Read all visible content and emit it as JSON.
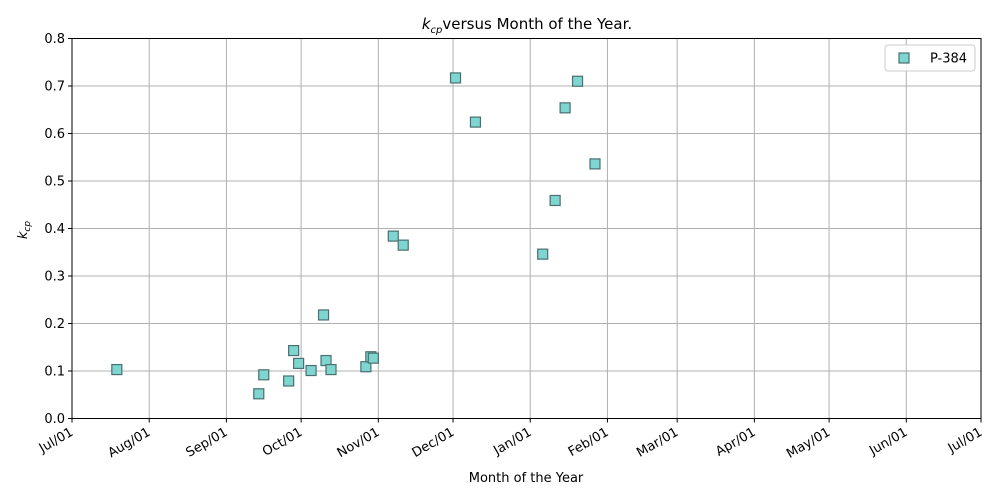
{
  "chart_data": {
    "type": "scatter",
    "title": "versus Month of the Year.",
    "title_symbol": "k",
    "title_symbol_sub": "cp",
    "xlabel": "Month of the Year",
    "ylabel_symbol": "k",
    "ylabel_sub": "cp",
    "x_ticks": [
      "Jul/01",
      "Aug/01",
      "Sep/01",
      "Oct/01",
      "Nov/01",
      "Dec/01",
      "Jan/01",
      "Feb/01",
      "Mar/01",
      "Apr/01",
      "May/01",
      "Jun/01",
      "Jul/01"
    ],
    "x_tick_days": [
      0,
      31,
      62,
      92,
      123,
      153,
      184,
      215,
      243,
      274,
      304,
      335,
      365
    ],
    "xlim_days": [
      0,
      365
    ],
    "y_ticks": [
      "0.0",
      "0.1",
      "0.2",
      "0.3",
      "0.4",
      "0.5",
      "0.6",
      "0.7",
      "0.8"
    ],
    "ylim": [
      0,
      0.8
    ],
    "grid": true,
    "legend_position": "top-right",
    "series": [
      {
        "name": "P-384",
        "marker": "square",
        "color": "#7fd6d0",
        "edge_color": "#4a6e72",
        "points": [
          {
            "day": 18,
            "y": 0.103
          },
          {
            "day": 75,
            "y": 0.052
          },
          {
            "day": 77,
            "y": 0.092
          },
          {
            "day": 87,
            "y": 0.079
          },
          {
            "day": 89,
            "y": 0.143
          },
          {
            "day": 91,
            "y": 0.116
          },
          {
            "day": 96,
            "y": 0.101
          },
          {
            "day": 101,
            "y": 0.218
          },
          {
            "day": 102,
            "y": 0.122
          },
          {
            "day": 104,
            "y": 0.103
          },
          {
            "day": 118,
            "y": 0.109
          },
          {
            "day": 120,
            "y": 0.13
          },
          {
            "day": 121,
            "y": 0.127
          },
          {
            "day": 129,
            "y": 0.384
          },
          {
            "day": 133,
            "y": 0.365
          },
          {
            "day": 154,
            "y": 0.717
          },
          {
            "day": 162,
            "y": 0.624
          },
          {
            "day": 189,
            "y": 0.346
          },
          {
            "day": 194,
            "y": 0.459
          },
          {
            "day": 198,
            "y": 0.654
          },
          {
            "day": 203,
            "y": 0.71
          },
          {
            "day": 210,
            "y": 0.536
          }
        ]
      }
    ]
  }
}
